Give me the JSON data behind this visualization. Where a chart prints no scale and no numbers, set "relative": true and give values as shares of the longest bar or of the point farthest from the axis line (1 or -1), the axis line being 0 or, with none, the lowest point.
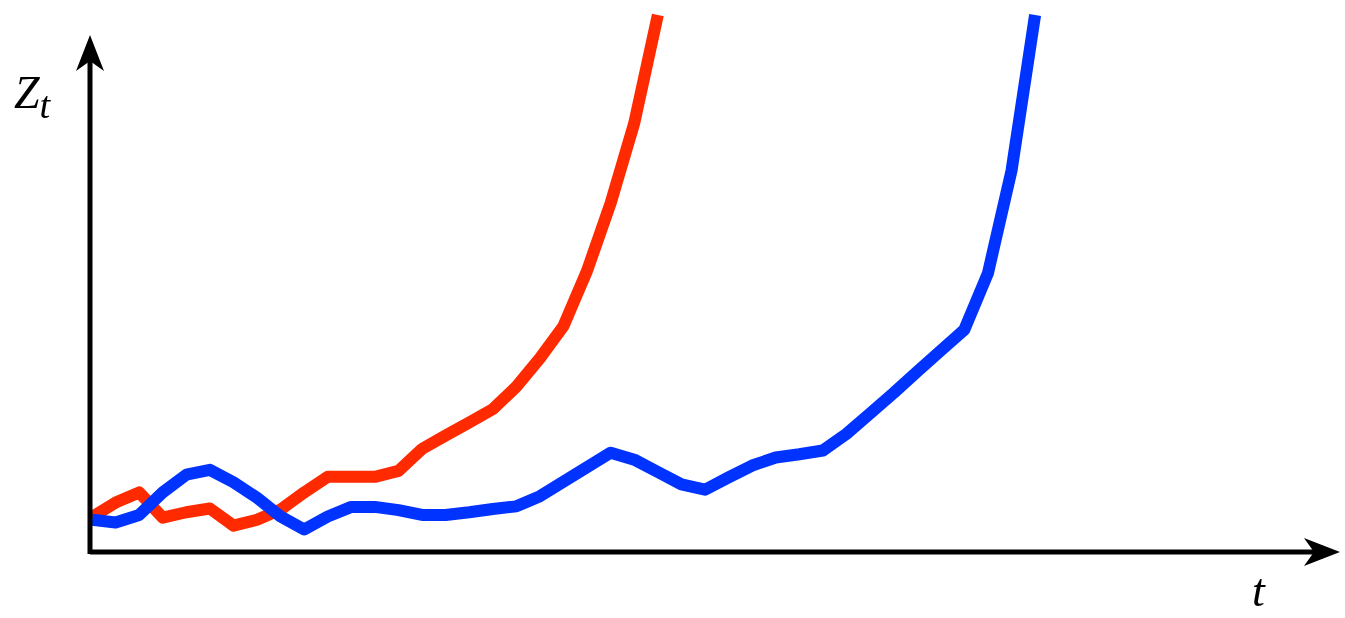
{
  "chart_data": {
    "type": "line",
    "relative": true,
    "xlabel": "t",
    "ylabel": "Z$_{t}$",
    "legend": false,
    "marker": "none",
    "line_style": "solid",
    "categories": [
      null,
      null,
      null,
      null,
      null,
      null,
      null,
      null,
      null,
      null,
      null,
      null,
      null,
      null,
      null,
      null,
      null,
      null,
      null,
      null,
      null,
      null,
      null,
      null,
      null,
      null,
      null,
      null,
      null,
      null,
      null,
      null,
      null,
      null,
      null,
      null,
      null,
      null,
      null,
      null,
      null,
      null,
      null,
      null,
      null,
      null,
      null,
      null,
      null,
      null,
      null,
      null,
      null
    ],
    "series": [
      {
        "color": "#0033ff",
        "values": [
          0.06,
          0.055,
          0.069,
          0.111,
          0.144,
          0.153,
          0.13,
          0.101,
          0.066,
          0.042,
          0.066,
          0.084,
          0.084,
          0.078,
          0.069,
          0.069,
          0.074,
          0.08,
          0.085,
          0.104,
          0.131,
          0.158,
          0.185,
          0.172,
          0.149,
          0.126,
          0.116,
          0.139,
          0.161,
          0.176,
          0.182,
          0.189,
          0.22,
          0.258,
          0.296,
          0.336,
          0.375,
          0.414,
          0.519,
          0.71,
          1.0,
          null,
          null,
          null,
          null,
          null,
          null,
          null,
          null,
          null,
          null,
          null,
          null
        ]
      },
      {
        "color": "#ff2a00",
        "values": [
          0.065,
          0.092,
          0.111,
          0.064,
          0.074,
          0.081,
          0.049,
          0.06,
          0.079,
          0.111,
          0.14,
          0.14,
          0.14,
          0.151,
          0.192,
          0.217,
          0.241,
          0.266,
          0.308,
          0.361,
          0.421,
          0.524,
          0.65,
          0.799,
          1.0,
          null,
          null,
          null,
          null,
          null,
          null,
          null,
          null,
          null,
          null,
          null,
          null,
          null,
          null,
          null,
          null,
          null,
          null,
          null,
          null,
          null,
          null,
          null,
          null,
          null,
          null,
          null,
          null
        ]
      }
    ]
  }
}
